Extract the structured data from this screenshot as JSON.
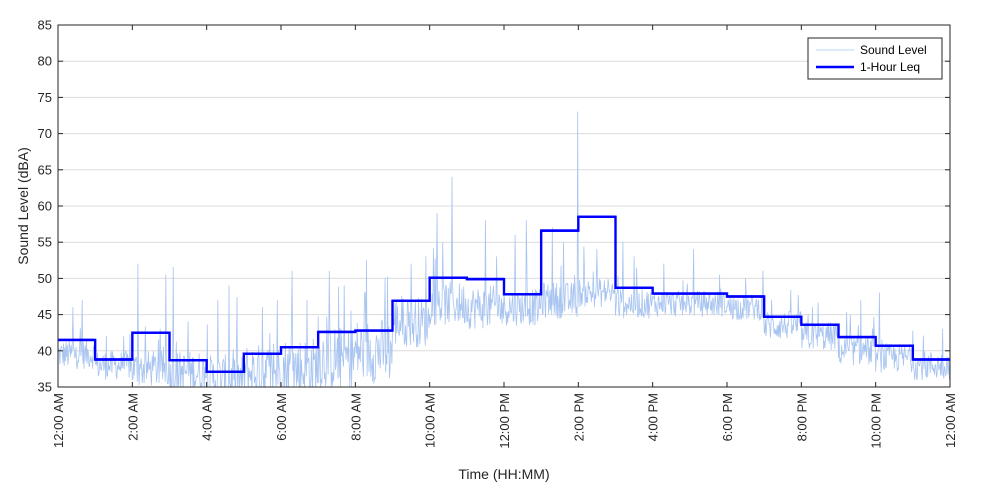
{
  "chart_data": {
    "type": "line",
    "title": "",
    "xlabel": "Time (HH:MM)",
    "ylabel": "Sound Level (dBA)",
    "ylim": [
      35,
      85
    ],
    "yticks": [
      35,
      40,
      45,
      50,
      55,
      60,
      65,
      70,
      75,
      80,
      85
    ],
    "xlim_hours": [
      0,
      24
    ],
    "xticks": [
      {
        "hour": 0,
        "label": "12:00 AM"
      },
      {
        "hour": 2,
        "label": "2:00 AM"
      },
      {
        "hour": 4,
        "label": "4:00 AM"
      },
      {
        "hour": 6,
        "label": "6:00 AM"
      },
      {
        "hour": 8,
        "label": "8:00 AM"
      },
      {
        "hour": 10,
        "label": "10:00 AM"
      },
      {
        "hour": 12,
        "label": "12:00 PM"
      },
      {
        "hour": 14,
        "label": "2:00 PM"
      },
      {
        "hour": 16,
        "label": "4:00 PM"
      },
      {
        "hour": 18,
        "label": "6:00 PM"
      },
      {
        "hour": 20,
        "label": "8:00 PM"
      },
      {
        "hour": 22,
        "label": "10:00 PM"
      },
      {
        "hour": 24,
        "label": "12:00 AM"
      }
    ],
    "grid": "horizontal",
    "legend_position": "top-right",
    "series": [
      {
        "name": "Sound Level",
        "color": "#a8c4f0",
        "style": "thin-line",
        "hourly_profile": [
          {
            "hour_start": 0,
            "base": 39.5,
            "spread": 2.0,
            "spikes": [
              [
                0.4,
                46
              ],
              [
                0.65,
                47
              ]
            ]
          },
          {
            "hour_start": 1,
            "base": 38.0,
            "spread": 2.0,
            "spikes": [
              [
                1.3,
                42
              ]
            ]
          },
          {
            "hour_start": 2,
            "base": 37.5,
            "spread": 2.5,
            "spikes": [
              [
                2.15,
                52
              ],
              [
                2.9,
                50.5
              ]
            ]
          },
          {
            "hour_start": 3,
            "base": 37.0,
            "spread": 3.0,
            "spikes": [
              [
                3.1,
                51.5
              ],
              [
                3.5,
                44
              ]
            ]
          },
          {
            "hour_start": 4,
            "base": 36.0,
            "spread": 3.5,
            "spikes": [
              [
                4.3,
                47
              ],
              [
                4.6,
                49
              ]
            ]
          },
          {
            "hour_start": 5,
            "base": 37.0,
            "spread": 4.0,
            "spikes": [
              [
                5.5,
                46
              ],
              [
                5.9,
                47
              ]
            ]
          },
          {
            "hour_start": 6,
            "base": 37.5,
            "spread": 4.5,
            "spikes": [
              [
                6.3,
                51
              ],
              [
                6.7,
                47
              ]
            ]
          },
          {
            "hour_start": 7,
            "base": 39.0,
            "spread": 4.5,
            "spikes": [
              [
                7.3,
                51
              ],
              [
                7.7,
                49
              ]
            ]
          },
          {
            "hour_start": 8,
            "base": 40.0,
            "spread": 4.5,
            "spikes": [
              [
                8.3,
                52.5
              ],
              [
                8.8,
                50
              ]
            ]
          },
          {
            "hour_start": 9,
            "base": 44.0,
            "spread": 3.5,
            "spikes": [
              [
                9.5,
                52
              ],
              [
                9.9,
                53
              ]
            ]
          },
          {
            "hour_start": 10,
            "base": 46.5,
            "spread": 3.0,
            "spikes": [
              [
                10.2,
                59
              ],
              [
                10.6,
                64
              ]
            ]
          },
          {
            "hour_start": 11,
            "base": 46.0,
            "spread": 3.0,
            "spikes": [
              [
                11.5,
                58
              ],
              [
                11.8,
                53
              ]
            ]
          },
          {
            "hour_start": 12,
            "base": 46.0,
            "spread": 2.5,
            "spikes": [
              [
                12.6,
                58
              ],
              [
                12.3,
                56
              ]
            ]
          },
          {
            "hour_start": 13,
            "base": 47.0,
            "spread": 2.5,
            "spikes": [
              [
                13.3,
                57
              ],
              [
                13.6,
                55
              ]
            ]
          },
          {
            "hour_start": 14,
            "base": 48.0,
            "spread": 2.0,
            "spikes": [
              [
                13.98,
                73
              ],
              [
                14.5,
                54
              ]
            ]
          },
          {
            "hour_start": 15,
            "base": 46.5,
            "spread": 2.0,
            "spikes": [
              [
                15.2,
                55
              ],
              [
                15.5,
                53
              ]
            ]
          },
          {
            "hour_start": 16,
            "base": 46.5,
            "spread": 1.8,
            "spikes": [
              [
                16.3,
                52
              ]
            ]
          },
          {
            "hour_start": 17,
            "base": 46.5,
            "spread": 1.8,
            "spikes": [
              [
                17.1,
                54
              ]
            ]
          },
          {
            "hour_start": 18,
            "base": 46.0,
            "spread": 1.8,
            "spikes": [
              [
                18.5,
                50
              ]
            ]
          },
          {
            "hour_start": 19,
            "base": 43.5,
            "spread": 2.0,
            "spikes": [
              [
                19.2,
                47
              ]
            ]
          },
          {
            "hour_start": 20,
            "base": 42.0,
            "spread": 2.0,
            "spikes": [
              [
                20.3,
                46
              ]
            ]
          },
          {
            "hour_start": 21,
            "base": 40.0,
            "spread": 2.0,
            "spikes": [
              [
                21.6,
                47
              ]
            ]
          },
          {
            "hour_start": 22,
            "base": 39.0,
            "spread": 2.0,
            "spikes": [
              [
                22.1,
                48
              ]
            ]
          },
          {
            "hour_start": 23,
            "base": 38.0,
            "spread": 2.0,
            "spikes": [
              [
                23.8,
                43
              ]
            ]
          }
        ]
      },
      {
        "name": "1-Hour Leq",
        "color": "#0000ff",
        "style": "step",
        "x": [
          0,
          1,
          2,
          3,
          4,
          5,
          6,
          7,
          8,
          9,
          10,
          11,
          12,
          13,
          14,
          15,
          16,
          17,
          18,
          19,
          20,
          21,
          22,
          23
        ],
        "values": [
          41.5,
          38.8,
          42.5,
          38.7,
          37.1,
          39.6,
          40.5,
          42.6,
          42.8,
          46.9,
          50.1,
          49.9,
          47.8,
          56.6,
          58.5,
          48.7,
          47.9,
          47.9,
          47.5,
          44.7,
          43.6,
          41.9,
          40.7,
          38.8
        ]
      }
    ]
  }
}
